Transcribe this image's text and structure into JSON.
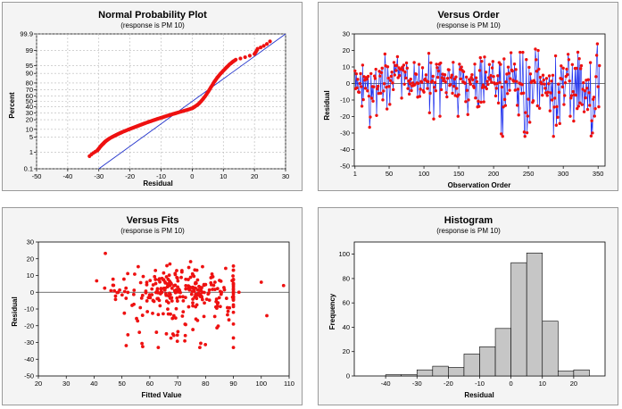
{
  "colors": {
    "points": "#ee1111",
    "fitline": "#2233cc",
    "series_line": "#2233ee",
    "bars": "#c6c6c6",
    "panel_bg": "#f4f4f4"
  },
  "chart_data": [
    {
      "type": "scatter",
      "title": "Normal Probability Plot",
      "subtitle": "(response is PM 10)",
      "xlabel": "Residual",
      "ylabel": "Percent",
      "xlim": [
        -50,
        30
      ],
      "xticks": [
        -50,
        -40,
        -30,
        -20,
        -10,
        0,
        10,
        20,
        30
      ],
      "yticks": [
        "0.1",
        "1",
        "5",
        "10",
        "20",
        "30",
        "40",
        "50",
        "60",
        "70",
        "80",
        "90",
        "95",
        "99",
        "99.9"
      ],
      "ytick_values": [
        0.1,
        1,
        5,
        10,
        20,
        30,
        40,
        50,
        60,
        70,
        80,
        90,
        95,
        99,
        99.9
      ],
      "grid": true,
      "fit_line": {
        "x": [
          -30,
          30
        ],
        "y": [
          0.1,
          99.9
        ]
      },
      "points": {
        "x": [
          -33,
          -30.5,
          -30,
          -29.5,
          -29,
          -28.5,
          -28,
          -27.3,
          -26.5,
          -25.5,
          -24.5,
          -23.5,
          -22.5,
          -21,
          -19.5,
          -18,
          -16.5,
          -15,
          -13.5,
          -12,
          -10.5,
          -9,
          -7.5,
          -6,
          -4.5,
          -3,
          -1.5,
          0,
          1,
          2,
          3,
          4,
          5,
          6,
          7,
          8,
          9,
          10,
          11,
          12,
          13,
          14,
          20,
          21,
          25
        ],
        "y": [
          0.6,
          1.2,
          1.5,
          1.9,
          2.3,
          2.7,
          3.2,
          3.8,
          4.5,
          5.3,
          6.1,
          7.0,
          7.9,
          9.3,
          10.8,
          12.4,
          14.1,
          16.0,
          17.9,
          19.9,
          21.9,
          24.0,
          26.1,
          28.3,
          30.5,
          32.7,
          34.9,
          37.5,
          41,
          45,
          51,
          58,
          66,
          74,
          81,
          86,
          89.5,
          92,
          94,
          95.5,
          96.5,
          97.2,
          98.5,
          99.2,
          99.7
        ]
      }
    },
    {
      "type": "line",
      "title": "Versus Order",
      "subtitle": "(response is PM 10)",
      "xlabel": "Observation Order",
      "ylabel": "Residual",
      "xlim": [
        0,
        360
      ],
      "ylim": [
        -50,
        30
      ],
      "xticks": [
        1,
        50,
        100,
        150,
        200,
        250,
        300,
        350
      ],
      "yticks": [
        -50,
        -40,
        -30,
        -20,
        -10,
        0,
        10,
        20,
        30
      ],
      "reference_line": 0,
      "n": 352,
      "series": [
        {
          "values_note": "residual per observation (see generated values)"
        }
      ]
    },
    {
      "type": "scatter",
      "title": "Versus Fits",
      "subtitle": "(response is PM 10)",
      "xlabel": "Fitted Value",
      "ylabel": "Residual",
      "xlim": [
        20,
        110
      ],
      "ylim": [
        -50,
        30
      ],
      "xticks": [
        20,
        30,
        40,
        50,
        60,
        70,
        80,
        90,
        100,
        110
      ],
      "yticks": [
        -50,
        -40,
        -30,
        -20,
        -10,
        0,
        10,
        20,
        30
      ],
      "reference_line": 0
    },
    {
      "type": "bar",
      "title": "Histogram",
      "subtitle": "(response is PM 10)",
      "xlabel": "Residual",
      "ylabel": "Frequency",
      "xlim": [
        -50,
        30
      ],
      "ylim": [
        0,
        110
      ],
      "xticks": [
        -40,
        -30,
        -20,
        -10,
        0,
        10,
        20
      ],
      "yticks": [
        0,
        20,
        40,
        60,
        80,
        100
      ],
      "bins": [
        -42.5,
        -37.5,
        -32.5,
        -27.5,
        -22.5,
        -17.5,
        -12.5,
        -7.5,
        -2.5,
        2.5,
        7.5,
        12.5,
        17.5,
        22.5
      ],
      "values": [
        0,
        1,
        1,
        5,
        8,
        7,
        18,
        24,
        39,
        93,
        101,
        45,
        4,
        5
      ]
    }
  ]
}
